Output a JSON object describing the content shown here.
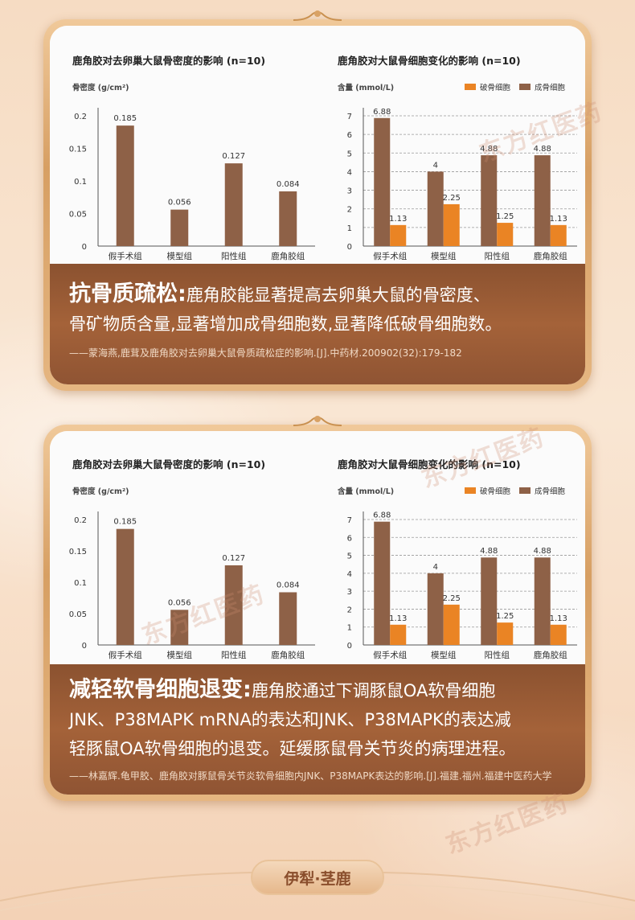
{
  "sections": [
    {
      "heading": "抗骨质疏松:",
      "body_lines": [
        "鹿角胶能显著提高去卵巢大鼠的骨密度、",
        "骨矿物质含量,显著增加成骨细胞数,显著降低破骨细胞数。"
      ],
      "reference": "——蒙海燕,鹿茸及鹿角胶对去卵巢大鼠骨质疏松症的影响.[J].中药材.200902(32):179-182"
    },
    {
      "heading": "减轻软骨细胞退变:",
      "body_lines": [
        "鹿角胶通过下调豚鼠OA软骨细胞",
        "JNK、P38MAPK mRNA的表达和JNK、P38MAPK的表达减",
        "轻豚鼠OA软骨细胞的退变。延缓豚鼠骨关节炎的病理进程。"
      ],
      "reference": "——林嘉辉.龟甲胶、鹿角胶对豚鼠骨关节炎软骨细胞内JNK、P38MAPK表达的影响.[J].福建.福州.福建中医药大学"
    }
  ],
  "chart_data": [
    {
      "type": "bar",
      "title": "鹿角胶对去卵巢大鼠骨密度的影响 (n=10)",
      "ylabel": "骨密度 (g/cm²)",
      "categories": [
        "假手术组",
        "模型组",
        "阳性组",
        "鹿角胶组"
      ],
      "values": [
        0.185,
        0.056,
        0.127,
        0.084
      ],
      "data_labels": [
        "0.185",
        "0.056",
        "0.127",
        "0.084"
      ],
      "yticks": [
        "0",
        "0.05",
        "0.1",
        "0.15",
        "0.2"
      ],
      "ylim": [
        0,
        0.2
      ],
      "color": "#8e6147"
    },
    {
      "type": "bar",
      "title": "鹿角胶对大鼠骨细胞变化的影响 (n=10)",
      "ylabel": "含量 (mmol/L)",
      "categories": [
        "假手术组",
        "模型组",
        "阳性组",
        "鹿角胶组"
      ],
      "series": [
        {
          "name": "破骨细胞",
          "values": [
            1.13,
            2.25,
            1.25,
            1.13
          ],
          "labels": [
            "1.13",
            "2.25",
            "1.25",
            "1.13"
          ],
          "color": "#ea8424"
        },
        {
          "name": "成骨细胞",
          "values": [
            6.88,
            4,
            4.88,
            4.88
          ],
          "labels": [
            "6.88",
            "4",
            "4.88",
            "4.88"
          ],
          "color": "#8e6147"
        }
      ],
      "yticks": [
        "0",
        "1",
        "2",
        "3",
        "4",
        "5",
        "6",
        "7"
      ],
      "ylim": [
        0,
        7
      ],
      "legend": "top-right",
      "grid": true
    }
  ],
  "watermarks": [
    "东方红医药",
    "东方红医药",
    "东方红医药",
    "东方红医药"
  ],
  "footer": {
    "brand": "伊犁·茎鹿"
  }
}
